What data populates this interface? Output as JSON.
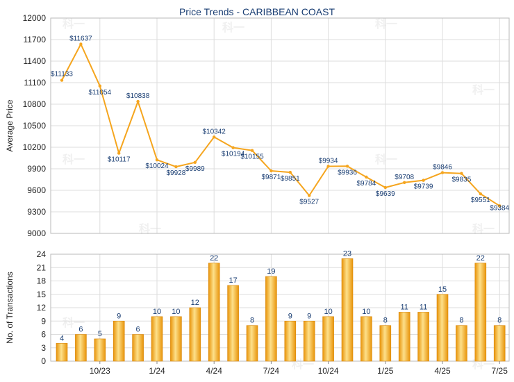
{
  "chart_data": [
    {
      "type": "line",
      "title": "Price Trends - CARIBBEAN COAST",
      "ylabel": "Average Price",
      "ylim": [
        9000,
        12000
      ],
      "yticks": [
        "12000",
        "11700",
        "11400",
        "11100",
        "10800",
        "10500",
        "10200",
        "9900",
        "9600",
        "9300",
        "9000"
      ],
      "line_color": "#f5a51e",
      "values": [
        11133,
        11637,
        11054,
        10117,
        10838,
        10024,
        9928,
        9989,
        10342,
        10194,
        10155,
        9871,
        9851,
        9527,
        9934,
        9936,
        9784,
        9639,
        9708,
        9739,
        9846,
        9835,
        9551,
        9384
      ],
      "labels": [
        "$11133",
        "$11637",
        "$11054",
        "$10117",
        "$10838",
        "$10024",
        "$9928",
        "$9989",
        "$10342",
        "$10194",
        "$10155",
        "$9871",
        "$9851",
        "$9527",
        "$9934",
        "$9936",
        "$9784",
        "$9639",
        "$9708",
        "$9739",
        "$9846",
        "$9835",
        "$9551",
        "$9384"
      ]
    },
    {
      "type": "bar",
      "ylabel": "No. of Transactions",
      "ylim": [
        0,
        24
      ],
      "yticks": [
        "24",
        "21",
        "18",
        "15",
        "12",
        "9",
        "6",
        "3",
        "0"
      ],
      "bar_color": "#f5a51e",
      "values": [
        4,
        6,
        5,
        9,
        6,
        10,
        10,
        12,
        22,
        17,
        8,
        19,
        9,
        9,
        10,
        23,
        10,
        8,
        11,
        11,
        15,
        8,
        22,
        8
      ],
      "x_tick_labels": [
        "10/23",
        "1/24",
        "4/24",
        "7/24",
        "10/24",
        "1/25",
        "4/25",
        "7/25"
      ]
    }
  ]
}
